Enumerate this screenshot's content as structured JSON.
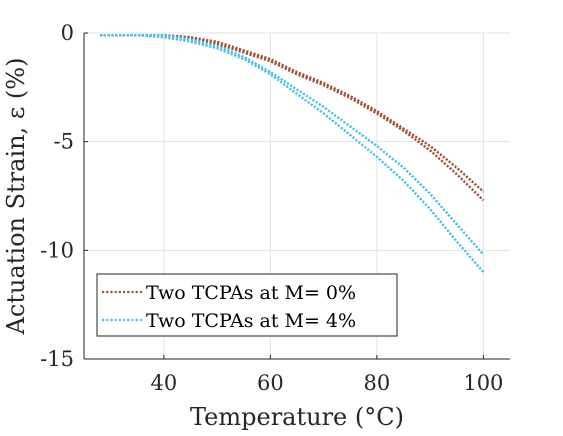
{
  "chart_data": {
    "type": "line",
    "xlabel": "Temperature (°C)",
    "ylabel": "Actuation Strain, ε (%)",
    "xlim": [
      25,
      105
    ],
    "ylim": [
      -15,
      0
    ],
    "xticks": [
      "40",
      "60",
      "80",
      "100"
    ],
    "yticks": [
      "0",
      "-5",
      "-10",
      "-15"
    ],
    "xtick_values": [
      40,
      60,
      80,
      100
    ],
    "ytick_values": [
      0,
      -5,
      -10,
      -15
    ],
    "grid": true,
    "legend_placement": "bottom-left",
    "series": [
      {
        "name": "Two TCPAs at M= 0%",
        "color": "#a0523c",
        "style": "dotted",
        "curves": [
          {
            "x": [
              28,
              35,
              40,
              45,
              50,
              55,
              60,
              65,
              70,
              75,
              80,
              85,
              90,
              95,
              100
            ],
            "y": [
              -0.1,
              -0.1,
              -0.1,
              -0.2,
              -0.5,
              -0.9,
              -1.3,
              -1.9,
              -2.4,
              -3.0,
              -3.7,
              -4.5,
              -5.4,
              -6.5,
              -7.7
            ]
          },
          {
            "x": [
              28,
              35,
              40,
              45,
              50,
              55,
              60,
              65,
              70,
              75,
              80,
              85,
              90,
              95,
              100
            ],
            "y": [
              -0.1,
              -0.1,
              -0.1,
              -0.2,
              -0.4,
              -0.8,
              -1.2,
              -1.8,
              -2.3,
              -2.9,
              -3.6,
              -4.4,
              -5.2,
              -6.2,
              -7.3
            ]
          }
        ]
      },
      {
        "name": "Two TCPAs at M= 4%",
        "color": "#4cbfe8",
        "style": "dotted",
        "curves": [
          {
            "x": [
              28,
              35,
              40,
              45,
              50,
              55,
              60,
              65,
              70,
              75,
              80,
              85,
              90,
              95,
              100
            ],
            "y": [
              -0.1,
              -0.1,
              -0.2,
              -0.4,
              -0.7,
              -1.2,
              -1.9,
              -2.8,
              -3.7,
              -4.7,
              -5.7,
              -6.8,
              -8.1,
              -9.6,
              -11.0
            ]
          },
          {
            "x": [
              28,
              35,
              40,
              45,
              50,
              55,
              60,
              65,
              70,
              75,
              80,
              85,
              90,
              95,
              100
            ],
            "y": [
              -0.1,
              -0.1,
              -0.1,
              -0.3,
              -0.6,
              -1.1,
              -1.8,
              -2.6,
              -3.4,
              -4.3,
              -5.2,
              -6.2,
              -7.4,
              -8.8,
              -10.2
            ]
          }
        ]
      }
    ]
  }
}
